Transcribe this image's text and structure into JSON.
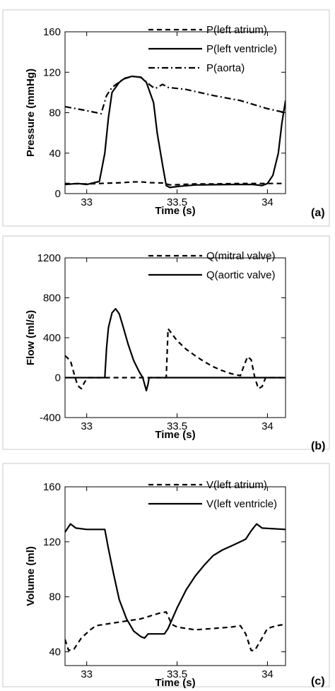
{
  "chart_data": [
    {
      "type": "line",
      "panel_tag": "(a)",
      "xlabel": "Time (s)",
      "ylabel": "Pressure (mmHg)",
      "xlim": [
        32.88,
        34.1
      ],
      "ylim": [
        0,
        160
      ],
      "xticks": [
        33,
        33.5,
        34
      ],
      "xtick_labels": [
        "33",
        "33.5",
        "34"
      ],
      "yticks": [
        0,
        40,
        80,
        120,
        160
      ],
      "ytick_labels": [
        "0",
        "40",
        "80",
        "120",
        "160"
      ],
      "grid": false,
      "legend_position": "top-right",
      "series": [
        {
          "name": "P(left atrium)",
          "style": "dashed",
          "points": [
            [
              32.88,
              10
            ],
            [
              33.0,
              9.5
            ],
            [
              33.1,
              10.2
            ],
            [
              33.2,
              10.8
            ],
            [
              33.25,
              11.5
            ],
            [
              33.3,
              11.6
            ],
            [
              33.35,
              10.8
            ],
            [
              33.42,
              10.5
            ],
            [
              33.46,
              8.6
            ],
            [
              33.5,
              8.8
            ],
            [
              33.6,
              9.6
            ],
            [
              33.7,
              9.6
            ],
            [
              33.85,
              10
            ],
            [
              33.95,
              10
            ],
            [
              34.1,
              10
            ]
          ]
        },
        {
          "name": "P(left ventricle)",
          "style": "solid",
          "points": [
            [
              32.88,
              9
            ],
            [
              32.95,
              10
            ],
            [
              33.0,
              9
            ],
            [
              33.07,
              12
            ],
            [
              33.1,
              40
            ],
            [
              33.12,
              75
            ],
            [
              33.14,
              100
            ],
            [
              33.18,
              110
            ],
            [
              33.21,
              114
            ],
            [
              33.25,
              116
            ],
            [
              33.3,
              115
            ],
            [
              33.33,
              110
            ],
            [
              33.37,
              90
            ],
            [
              33.39,
              60
            ],
            [
              33.42,
              28
            ],
            [
              33.44,
              8
            ],
            [
              33.46,
              6
            ],
            [
              33.5,
              7
            ],
            [
              33.6,
              8.5
            ],
            [
              33.8,
              9
            ],
            [
              33.92,
              9
            ],
            [
              33.97,
              8
            ],
            [
              34.0,
              10
            ],
            [
              34.03,
              18
            ],
            [
              34.06,
              40
            ],
            [
              34.08,
              70
            ],
            [
              34.1,
              92
            ]
          ]
        },
        {
          "name": "P(aorta)",
          "style": "dashdot",
          "points": [
            [
              32.88,
              86
            ],
            [
              33.0,
              82
            ],
            [
              33.08,
              79
            ],
            [
              33.11,
              97
            ],
            [
              33.14,
              105
            ],
            [
              33.2,
              113
            ],
            [
              33.25,
              116
            ],
            [
              33.3,
              115
            ],
            [
              33.34,
              109
            ],
            [
              33.36,
              106
            ],
            [
              33.38,
              104
            ],
            [
              33.42,
              108
            ],
            [
              33.45,
              105
            ],
            [
              33.55,
              103
            ],
            [
              33.7,
              97
            ],
            [
              33.85,
              92
            ],
            [
              34.0,
              84
            ],
            [
              34.1,
              80
            ]
          ]
        }
      ]
    },
    {
      "type": "line",
      "panel_tag": "(b)",
      "xlabel": "Time (s)",
      "ylabel": "Flow (ml/s)",
      "xlim": [
        32.88,
        34.1
      ],
      "ylim": [
        -400,
        1200
      ],
      "xticks": [
        33,
        33.5,
        34
      ],
      "xtick_labels": [
        "33",
        "33.5",
        "34"
      ],
      "yticks": [
        -400,
        0,
        400,
        800,
        1200
      ],
      "ytick_labels": [
        "-400",
        "0",
        "400",
        "800",
        "1200"
      ],
      "grid": false,
      "legend_position": "top-right",
      "series": [
        {
          "name": "Q(mitral valve)",
          "style": "dashed",
          "points": [
            [
              32.88,
              220
            ],
            [
              32.91,
              170
            ],
            [
              32.93,
              40
            ],
            [
              32.95,
              -80
            ],
            [
              32.97,
              -110
            ],
            [
              32.99,
              -40
            ],
            [
              33.01,
              0
            ],
            [
              33.44,
              0
            ],
            [
              33.45,
              490
            ],
            [
              33.5,
              370
            ],
            [
              33.55,
              285
            ],
            [
              33.6,
              220
            ],
            [
              33.65,
              160
            ],
            [
              33.7,
              110
            ],
            [
              33.75,
              70
            ],
            [
              33.8,
              40
            ],
            [
              33.85,
              20
            ],
            [
              33.87,
              120
            ],
            [
              33.89,
              210
            ],
            [
              33.91,
              180
            ],
            [
              33.93,
              0
            ],
            [
              33.95,
              -110
            ],
            [
              33.97,
              -90
            ],
            [
              33.99,
              0
            ],
            [
              34.1,
              0
            ]
          ]
        },
        {
          "name": "Q(aortic valve)",
          "style": "solid",
          "points": [
            [
              32.88,
              0
            ],
            [
              33.1,
              0
            ],
            [
              33.11,
              300
            ],
            [
              33.12,
              500
            ],
            [
              33.14,
              650
            ],
            [
              33.16,
              690
            ],
            [
              33.18,
              640
            ],
            [
              33.2,
              520
            ],
            [
              33.23,
              330
            ],
            [
              33.26,
              170
            ],
            [
              33.29,
              60
            ],
            [
              33.31,
              0
            ],
            [
              33.33,
              -130
            ],
            [
              33.34,
              -60
            ],
            [
              33.345,
              0
            ],
            [
              34.1,
              0
            ]
          ]
        }
      ]
    },
    {
      "type": "line",
      "panel_tag": "(c)",
      "xlabel": "Time (s)",
      "ylabel": "Volume (ml)",
      "xlim": [
        32.88,
        34.1
      ],
      "ylim": [
        30,
        160
      ],
      "xticks": [
        33,
        33.5,
        34
      ],
      "xtick_labels": [
        "33",
        "33.5",
        "34"
      ],
      "yticks": [
        40,
        80,
        120,
        160
      ],
      "ytick_labels": [
        "40",
        "80",
        "120",
        "160"
      ],
      "grid": false,
      "legend_position": "top-right",
      "series": [
        {
          "name": "V(left atrium)",
          "style": "dashed",
          "points": [
            [
              32.88,
              49
            ],
            [
              32.9,
              41
            ],
            [
              32.93,
              42
            ],
            [
              32.97,
              50
            ],
            [
              33.02,
              56
            ],
            [
              33.05,
              59
            ],
            [
              33.1,
              60
            ],
            [
              33.2,
              62
            ],
            [
              33.3,
              64
            ],
            [
              33.35,
              66
            ],
            [
              33.4,
              68
            ],
            [
              33.44,
              69
            ],
            [
              33.47,
              60
            ],
            [
              33.5,
              58
            ],
            [
              33.6,
              56
            ],
            [
              33.7,
              57
            ],
            [
              33.8,
              58
            ],
            [
              33.85,
              59
            ],
            [
              33.88,
              53
            ],
            [
              33.91,
              41
            ],
            [
              33.93,
              41
            ],
            [
              33.97,
              50
            ],
            [
              34.0,
              57
            ],
            [
              34.05,
              59
            ],
            [
              34.1,
              60
            ]
          ]
        },
        {
          "name": "V(left ventricle)",
          "style": "solid",
          "points": [
            [
              32.88,
              127
            ],
            [
              32.91,
              133
            ],
            [
              32.94,
              130
            ],
            [
              33.0,
              129
            ],
            [
              33.1,
              129
            ],
            [
              33.12,
              115
            ],
            [
              33.15,
              96
            ],
            [
              33.18,
              78
            ],
            [
              33.22,
              64
            ],
            [
              33.26,
              55
            ],
            [
              33.3,
              51
            ],
            [
              33.32,
              50
            ],
            [
              33.34,
              53
            ],
            [
              33.43,
              53
            ],
            [
              33.45,
              57
            ],
            [
              33.5,
              72
            ],
            [
              33.55,
              85
            ],
            [
              33.6,
              95
            ],
            [
              33.65,
              103
            ],
            [
              33.7,
              110
            ],
            [
              33.75,
              114
            ],
            [
              33.8,
              117
            ],
            [
              33.85,
              120
            ],
            [
              33.88,
              122
            ],
            [
              33.91,
              128
            ],
            [
              33.94,
              133
            ],
            [
              33.97,
              130
            ],
            [
              34.1,
              129
            ]
          ]
        }
      ]
    }
  ]
}
